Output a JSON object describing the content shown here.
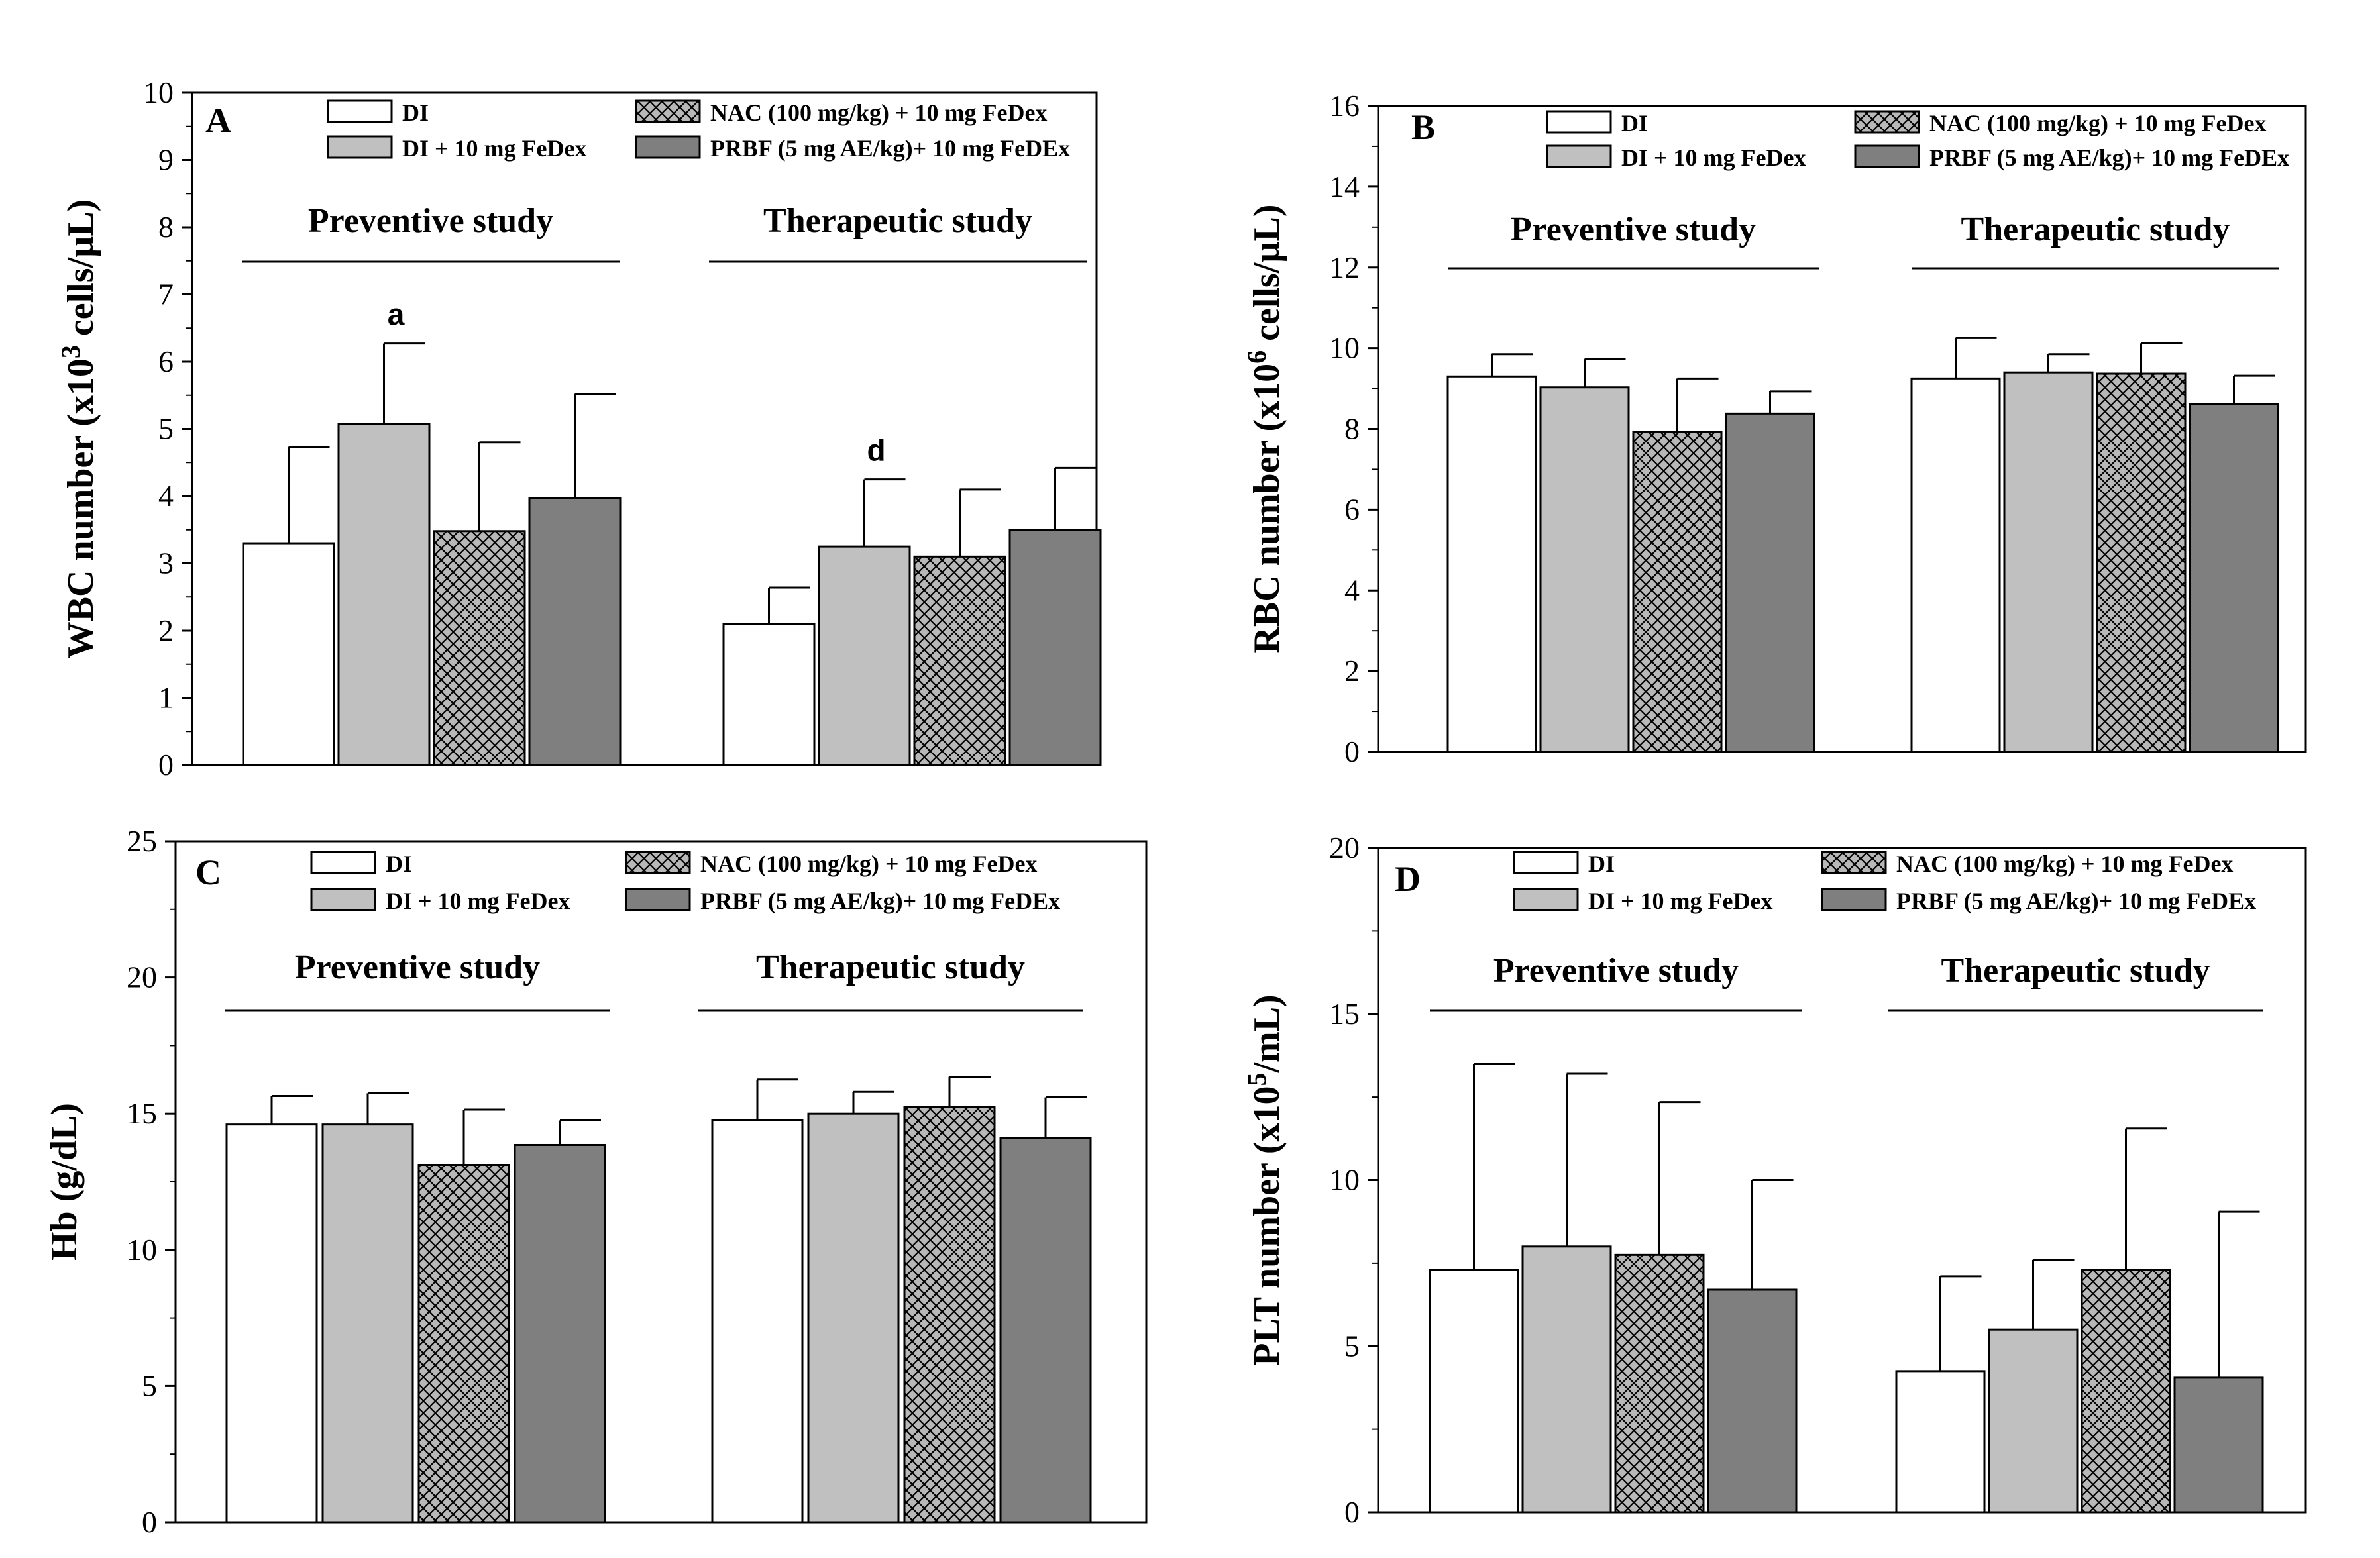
{
  "series_names": [
    "DI",
    "DI + 10 mg FeDex",
    "NAC (100 mg/kg) + 10 mg FeDex",
    "PRBF (5 mg AE/kg)+ 10 mg FeDEx"
  ],
  "series_styles": [
    {
      "fill": "#ffffff",
      "pattern": "none"
    },
    {
      "fill": "#c0c0c0",
      "pattern": "none"
    },
    {
      "fill": "#b8b8b8",
      "pattern": "crosshatch"
    },
    {
      "fill": "#7f7f7f",
      "pattern": "none"
    }
  ],
  "colors": {
    "axis": "#000000",
    "white_bar": "#ffffff",
    "light_gray_bar": "#c0c0c0",
    "hatch_bg": "#b8b8b8",
    "dark_gray_bar": "#7f7f7f"
  },
  "chart_data": [
    {
      "panel": "A",
      "type": "bar",
      "ylabel_main": "WBC number (x10",
      "ylabel_sup": "3",
      "ylabel_end": " cells/µL)",
      "ylim": [
        0,
        10
      ],
      "yticks": [
        "0",
        "1",
        "2",
        "3",
        "4",
        "5",
        "6",
        "7",
        "8",
        "9",
        "10"
      ],
      "groups": [
        "Preventive study",
        "Therapeutic study"
      ],
      "series": [
        {
          "name": "DI",
          "values": [
            3.3,
            2.1
          ],
          "errors": [
            1.43,
            0.54
          ]
        },
        {
          "name": "DI + 10 mg FeDex",
          "values": [
            5.07,
            3.25
          ],
          "errors": [
            1.2,
            1.0
          ]
        },
        {
          "name": "NAC (100 mg/kg) + 10 mg FeDex",
          "values": [
            3.48,
            3.1
          ],
          "errors": [
            1.32,
            1.0
          ]
        },
        {
          "name": "PRBF (5 mg AE/kg)+ 10 mg FeDEx",
          "values": [
            3.97,
            3.5
          ],
          "errors": [
            1.55,
            0.92
          ]
        }
      ],
      "annotations": [
        {
          "text": "a",
          "group": 0,
          "series": 1
        },
        {
          "text": "d",
          "group": 1,
          "series": 1
        }
      ]
    },
    {
      "panel": "B",
      "type": "bar",
      "ylabel_main": "RBC number (x10",
      "ylabel_sup": "6",
      "ylabel_end": " cells/µL)",
      "ylim": [
        0,
        16
      ],
      "yticks": [
        "0",
        "2",
        "4",
        "6",
        "8",
        "10",
        "12",
        "14",
        "16"
      ],
      "groups": [
        "Preventive study",
        "Therapeutic study"
      ],
      "series": [
        {
          "name": "DI",
          "values": [
            9.3,
            9.25
          ],
          "errors": [
            0.55,
            1.0
          ]
        },
        {
          "name": "DI + 10 mg FeDex",
          "values": [
            9.03,
            9.4
          ],
          "errors": [
            0.7,
            0.45
          ]
        },
        {
          "name": "NAC (100 mg/kg) + 10 mg FeDex",
          "values": [
            7.92,
            9.37
          ],
          "errors": [
            1.33,
            0.75
          ]
        },
        {
          "name": "PRBF (5 mg AE/kg)+ 10 mg FeDEx",
          "values": [
            8.38,
            8.62
          ],
          "errors": [
            0.55,
            0.7
          ]
        }
      ],
      "annotations": []
    },
    {
      "panel": "C",
      "type": "bar",
      "ylabel_main": "Hb (g/dL)",
      "ylabel_sup": "",
      "ylabel_end": "",
      "ylim": [
        0,
        25
      ],
      "yticks": [
        "0",
        "5",
        "10",
        "15",
        "20",
        "25"
      ],
      "groups": [
        "Preventive study",
        "Therapeutic study"
      ],
      "series": [
        {
          "name": "DI",
          "values": [
            14.6,
            14.75
          ],
          "errors": [
            1.05,
            1.5
          ]
        },
        {
          "name": "DI + 10 mg FeDex",
          "values": [
            14.6,
            15.0
          ],
          "errors": [
            1.15,
            0.8
          ]
        },
        {
          "name": "NAC (100 mg/kg) + 10 mg FeDex",
          "values": [
            13.12,
            15.25
          ],
          "errors": [
            2.03,
            1.1
          ]
        },
        {
          "name": "PRBF (5 mg AE/kg)+ 10 mg FeDEx",
          "values": [
            13.85,
            14.1
          ],
          "errors": [
            0.9,
            1.5
          ]
        }
      ],
      "annotations": []
    },
    {
      "panel": "D",
      "type": "bar",
      "ylabel_main": "PLT number (x10",
      "ylabel_sup": "5",
      "ylabel_end": "/mL)",
      "ylim": [
        0,
        20
      ],
      "yticks": [
        "0",
        "5",
        "10",
        "15",
        "20"
      ],
      "groups": [
        "Preventive study",
        "Therapeutic study"
      ],
      "series": [
        {
          "name": "DI",
          "values": [
            7.3,
            4.25
          ],
          "errors": [
            6.2,
            2.85
          ]
        },
        {
          "name": "DI + 10 mg FeDex",
          "values": [
            8.0,
            5.5
          ],
          "errors": [
            5.2,
            2.1
          ]
        },
        {
          "name": "NAC (100 mg/kg) + 10 mg FeDex",
          "values": [
            7.75,
            7.3
          ],
          "errors": [
            4.6,
            4.25
          ]
        },
        {
          "name": "PRBF (5 mg AE/kg)+ 10 mg FeDEx",
          "values": [
            6.7,
            4.05
          ],
          "errors": [
            3.3,
            5.0
          ]
        }
      ],
      "annotations": []
    }
  ]
}
